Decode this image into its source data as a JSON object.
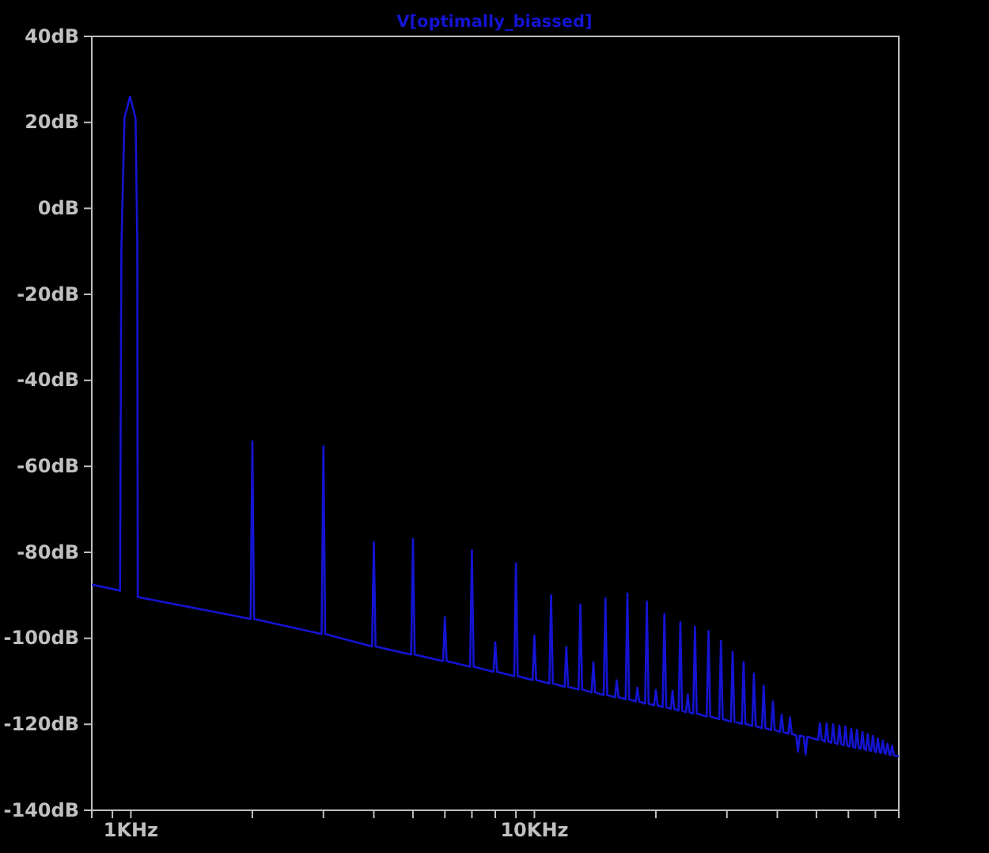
{
  "chart_data": {
    "type": "line",
    "title": "V[optimally_biassed]",
    "log": "x",
    "grid": false,
    "marker": "none",
    "line_style": "solid",
    "xlim": [
      0.8,
      80
    ],
    "ylim": [
      -140,
      40
    ],
    "xticks": [
      {
        "value": 0.8,
        "label": null
      },
      {
        "value": 0.9,
        "label": null
      },
      {
        "value": 1,
        "label": "1KHz"
      },
      {
        "value": 2,
        "label": null
      },
      {
        "value": 3,
        "label": null
      },
      {
        "value": 4,
        "label": null
      },
      {
        "value": 5,
        "label": null
      },
      {
        "value": 6,
        "label": null
      },
      {
        "value": 7,
        "label": null
      },
      {
        "value": 8,
        "label": null
      },
      {
        "value": 9,
        "label": null
      },
      {
        "value": 10,
        "label": "10KHz"
      },
      {
        "value": 20,
        "label": null
      },
      {
        "value": 30,
        "label": null
      },
      {
        "value": 40,
        "label": null
      },
      {
        "value": 50,
        "label": null
      },
      {
        "value": 60,
        "label": null
      },
      {
        "value": 70,
        "label": null
      },
      {
        "value": 80,
        "label": null
      }
    ],
    "yticks": [
      {
        "value": 40,
        "label": "40dB"
      },
      {
        "value": 20,
        "label": "20dB"
      },
      {
        "value": 0,
        "label": "0dB"
      },
      {
        "value": -20,
        "label": "-20dB"
      },
      {
        "value": -40,
        "label": "-40dB"
      },
      {
        "value": -60,
        "label": "-60dB"
      },
      {
        "value": -80,
        "label": "-80dB"
      },
      {
        "value": -100,
        "label": "-100dB"
      },
      {
        "value": -120,
        "label": "-120dB"
      },
      {
        "value": -140,
        "label": "-140dB"
      }
    ],
    "series": [
      {
        "color": "#1414d2",
        "x": [
          0.8,
          0.94,
          0.947,
          0.964,
          0.995,
          1.027,
          1.037,
          1.04,
          1.98,
          2,
          2.02,
          2.97,
          3,
          3.03,
          3.96,
          4,
          4.04,
          4.95,
          5,
          5.05,
          5.94,
          6,
          6.06,
          6.93,
          7,
          7.07,
          7.92,
          8,
          8.08,
          8.91,
          9,
          9.09,
          9.9,
          10,
          10.1,
          10.89,
          11,
          11.11,
          11.88,
          12,
          12.12,
          12.87,
          13,
          13.13,
          13.86,
          14,
          14.14,
          14.85,
          15,
          15.15,
          15.84,
          16,
          16.16,
          16.83,
          17,
          17.17,
          17.82,
          18,
          18.18,
          18.81,
          19,
          19.19,
          19.8,
          20,
          20.2,
          20.79,
          21,
          21.21,
          21.78,
          22,
          22.22,
          22.77,
          23,
          23.23,
          23.76,
          24,
          24.24,
          24.75,
          25,
          25.25,
          26.73,
          27,
          27.27,
          28.71,
          29,
          29.29,
          30.69,
          31,
          31.31,
          32.67,
          33,
          33.33,
          34.65,
          35,
          35.35,
          36.63,
          37,
          37.37,
          38.61,
          39,
          39.39,
          40.59,
          41,
          41.41,
          42.57,
          43,
          43.43,
          44.55,
          45,
          45.45,
          46.53,
          47,
          47.47,
          50.49,
          51,
          51.51,
          52.47,
          53,
          53.53,
          54.45,
          55,
          55.55,
          56.43,
          57,
          57.57,
          58.41,
          59,
          59.59,
          60.39,
          61,
          61.61,
          62.37,
          63,
          63.63,
          64.35,
          65,
          65.65,
          66.33,
          67,
          67.67,
          68.31,
          69,
          69.69,
          70.29,
          71,
          71.71,
          72.27,
          73,
          73.73,
          74.25,
          75,
          75.75,
          76.23,
          77,
          77.77,
          80
        ],
        "values": [
          -87.5,
          -88.9,
          -9.7,
          21,
          26,
          21,
          -7.5,
          -90.4,
          -95.5,
          -54.2,
          -95.5,
          -99,
          -55.3,
          -99,
          -101.9,
          -77.7,
          -101.9,
          -103.8,
          -76.9,
          -103.8,
          -105.3,
          -95.1,
          -105.3,
          -106.6,
          -79.5,
          -106.6,
          -107.8,
          -100.9,
          -107.8,
          -108.8,
          -82.6,
          -108.8,
          -109.7,
          -99.4,
          -109.7,
          -110.5,
          -90,
          -110.5,
          -111.3,
          -102,
          -111.3,
          -111.9,
          -92.1,
          -111.9,
          -112.6,
          -105.6,
          -112.6,
          -113.2,
          -90.7,
          -113.2,
          -113.7,
          -109.8,
          -113.7,
          -114.2,
          -89.6,
          -114.2,
          -114.7,
          -111.5,
          -114.7,
          -115.2,
          -91.4,
          -115.2,
          -115.6,
          -112,
          -115.6,
          -116,
          -94.3,
          -116,
          -116.4,
          -112.2,
          -116.4,
          -116.8,
          -96.2,
          -116.8,
          -117.2,
          -113.1,
          -117.2,
          -117.5,
          -97.3,
          -117.5,
          -118.2,
          -98.3,
          -118.2,
          -118.8,
          -100.6,
          -118.8,
          -119.4,
          -103.2,
          -119.4,
          -119.9,
          -105.5,
          -119.9,
          -120.4,
          -108.2,
          -120.4,
          -120.9,
          -111,
          -120.9,
          -121.3,
          -114.7,
          -121.3,
          -121.8,
          -117.8,
          -121.8,
          -122.2,
          -118.4,
          -122.2,
          -122.6,
          -126.4,
          -122.6,
          -122.9,
          -127,
          -122.9,
          -123.6,
          -119.7,
          -123.6,
          -124,
          -119.8,
          -124,
          -124.3,
          -120,
          -124.3,
          -124.6,
          -120.3,
          -124.6,
          -124.9,
          -120.5,
          -124.9,
          -125.2,
          -121,
          -125.2,
          -125.5,
          -121.3,
          -125.5,
          -125.7,
          -121.8,
          -125.7,
          -126,
          -122.3,
          -126,
          -126.2,
          -122.7,
          -126.2,
          -126.5,
          -123.3,
          -126.5,
          -126.7,
          -123.8,
          -126.7,
          -126.9,
          -124.5,
          -126.9,
          -127.2,
          -125,
          -127.2,
          -127.5
        ]
      }
    ]
  }
}
